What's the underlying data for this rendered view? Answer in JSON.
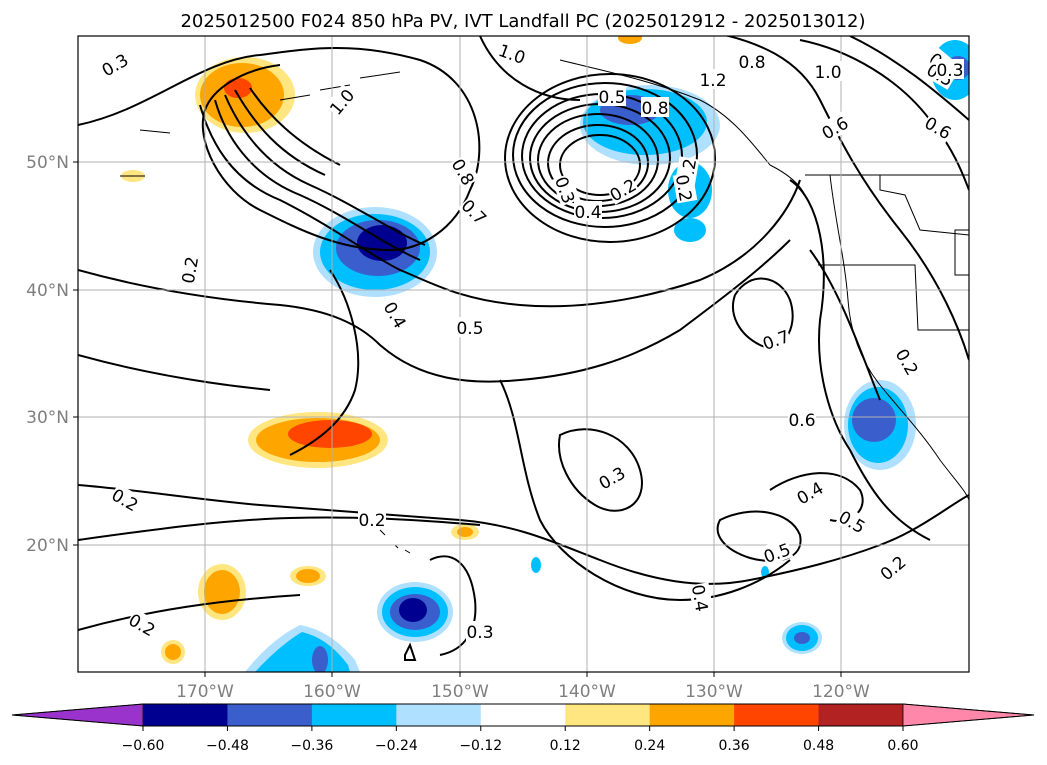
{
  "chart_data": {
    "type": "contour_map",
    "title": "2025012500 F024 850 hPa PV, IVT Landfall PC (2025012912 - 2025013012)",
    "x_ticks": [
      "170°W",
      "160°W",
      "150°W",
      "140°W",
      "130°W",
      "120°W"
    ],
    "y_ticks": [
      "50°N",
      "40°N",
      "30°N",
      "20°N"
    ],
    "lon_range": [
      -180,
      -110
    ],
    "lat_range": [
      10,
      60
    ],
    "colorbar": {
      "ticks": [
        "−0.60",
        "−0.48",
        "−0.36",
        "−0.24",
        "−0.12",
        "0.12",
        "0.24",
        "0.36",
        "0.48",
        "0.60"
      ],
      "levels": [
        -0.6,
        -0.48,
        -0.36,
        -0.24,
        -0.12,
        0.12,
        0.24,
        0.36,
        0.48,
        0.6
      ],
      "colors": [
        "#9933cc",
        "#000090",
        "#3a5fcd",
        "#00bfff",
        "#b0e0ff",
        "#ffffff",
        "#ffe680",
        "#ffa500",
        "#ff4500",
        "#b22222",
        "#ff88aa"
      ],
      "extend": "both"
    },
    "contour_labels": [
      "0.3",
      "1.0",
      "1.0",
      "0.8",
      "1.2",
      "0.8",
      "1.0",
      "0.5",
      "0.4",
      "0.6",
      "0.6",
      "0.8",
      "0.7",
      "0.3",
      "0.2",
      "0.4",
      "0.5",
      "0.6",
      "0.4",
      "0.2",
      "0.5",
      "0.7",
      "0.2",
      "0.6",
      "0.2",
      "0.3",
      "0.2",
      "0.4",
      "0.5",
      "0.5",
      "0.3",
      "0.2",
      "0.2",
      "0.2",
      "0.2",
      "0.3"
    ],
    "grid": true
  }
}
